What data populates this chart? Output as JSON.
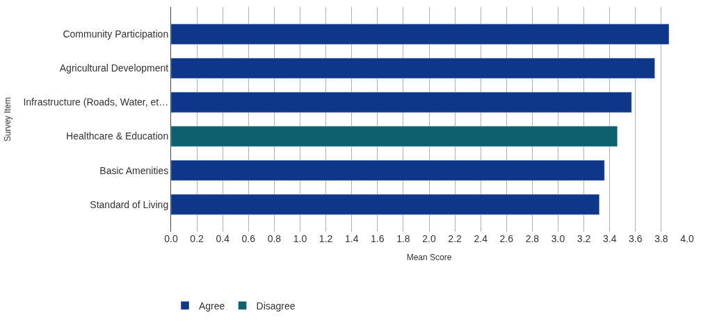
{
  "chart_data": {
    "type": "bar",
    "orientation": "horizontal",
    "xlabel": "Mean Score",
    "ylabel": "Survey Item",
    "categories": [
      "Community Participation",
      "Agricultural Development",
      "Infrastructure (Roads, Water, et…",
      "Healthcare & Education",
      "Basic Amenities",
      "Standard of Living"
    ],
    "series": [
      {
        "name": "Agree",
        "color": "#0f3789",
        "values": [
          3.86,
          3.75,
          3.57,
          null,
          3.36,
          3.32
        ]
      },
      {
        "name": "Disagree",
        "color": "#0d616f",
        "values": [
          null,
          null,
          null,
          3.46,
          null,
          null
        ]
      }
    ],
    "xlim": [
      0,
      4.0
    ],
    "xticks": [
      {
        "value": 0,
        "label": "0.0"
      },
      0.2,
      0.4,
      0.6,
      0.8,
      {
        "value": 1,
        "label": "1.0"
      },
      1.2,
      1.4,
      1.6,
      1.8,
      {
        "value": 2,
        "label": "2.0"
      },
      2.2,
      2.4,
      2.6,
      2.8,
      {
        "value": 3,
        "label": "3.0"
      },
      3.2,
      3.4,
      3.6,
      3.8,
      {
        "value": 4,
        "label": "4.0"
      }
    ],
    "grid": "x",
    "legend": "bottom"
  }
}
